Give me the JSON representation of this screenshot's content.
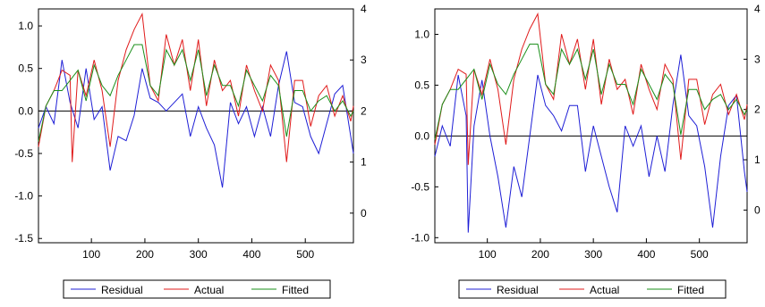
{
  "chart_data": [
    {
      "type": "line",
      "title": "",
      "xlabel": "",
      "ylabel": "",
      "x_range": [
        1,
        590
      ],
      "x_ticks": [
        "100",
        "200",
        "300",
        "400",
        "500"
      ],
      "y_left_range": [
        -1.55,
        1.2
      ],
      "y_left_ticks": [
        "1.0",
        "0.5",
        "0.0",
        "-0.5",
        "-1.0",
        "-1.5"
      ],
      "y_right_range": [
        -0.58,
        4.0
      ],
      "y_right_ticks": [
        "4",
        "3",
        "2",
        "1",
        "0"
      ],
      "grid": false,
      "legend_position": "bottom-center",
      "series": [
        {
          "name": "Residual",
          "axis": "left",
          "color": "#1f1fd6",
          "x": [
            1,
            15,
            30,
            45,
            60,
            75,
            90,
            105,
            120,
            135,
            150,
            165,
            180,
            195,
            210,
            225,
            240,
            255,
            270,
            285,
            300,
            315,
            330,
            345,
            360,
            375,
            390,
            405,
            420,
            435,
            450,
            465,
            480,
            495,
            510,
            525,
            540,
            555,
            570,
            585,
            590
          ],
          "values": [
            -0.2,
            0.05,
            -0.15,
            0.6,
            0.1,
            -0.2,
            0.5,
            -0.1,
            0.05,
            -0.7,
            -0.3,
            -0.35,
            -0.05,
            0.5,
            0.15,
            0.1,
            0.0,
            0.1,
            0.2,
            -0.3,
            0.05,
            -0.2,
            -0.4,
            -0.9,
            0.1,
            -0.15,
            0.05,
            -0.3,
            0.05,
            -0.3,
            0.3,
            0.7,
            0.1,
            0.05,
            -0.3,
            -0.5,
            -0.15,
            0.2,
            0.3,
            -0.3,
            -0.5
          ]
        },
        {
          "name": "Actual",
          "axis": "right",
          "color": "#e01b1b",
          "x": [
            1,
            15,
            30,
            45,
            60,
            64,
            75,
            90,
            105,
            120,
            135,
            150,
            165,
            180,
            195,
            210,
            225,
            240,
            255,
            270,
            285,
            300,
            315,
            330,
            345,
            360,
            375,
            390,
            405,
            420,
            435,
            450,
            465,
            480,
            495,
            510,
            525,
            540,
            555,
            570,
            585,
            590
          ],
          "values": [
            1.3,
            2.1,
            2.4,
            2.8,
            2.7,
            1.0,
            2.8,
            2.3,
            3.0,
            2.4,
            1.3,
            2.6,
            3.2,
            3.6,
            3.9,
            2.5,
            2.2,
            3.5,
            2.9,
            3.4,
            2.4,
            3.4,
            2.1,
            3.0,
            2.4,
            2.6,
            1.9,
            2.9,
            2.4,
            2.0,
            2.9,
            2.6,
            1.0,
            2.6,
            2.6,
            1.7,
            2.3,
            2.5,
            1.9,
            2.3,
            1.8,
            2.1
          ]
        },
        {
          "name": "Fitted",
          "axis": "right",
          "color": "#1a8f1a",
          "x": [
            1,
            15,
            30,
            45,
            60,
            75,
            90,
            105,
            120,
            135,
            150,
            165,
            180,
            195,
            210,
            225,
            240,
            255,
            270,
            285,
            300,
            315,
            330,
            345,
            360,
            375,
            390,
            405,
            420,
            435,
            450,
            465,
            480,
            495,
            510,
            525,
            540,
            555,
            570,
            585,
            590
          ],
          "values": [
            1.4,
            2.1,
            2.4,
            2.4,
            2.6,
            2.8,
            2.2,
            2.9,
            2.5,
            2.3,
            2.7,
            3.0,
            3.3,
            3.3,
            2.5,
            2.3,
            3.2,
            2.9,
            3.2,
            2.6,
            3.2,
            2.3,
            2.9,
            2.5,
            2.5,
            2.1,
            2.8,
            2.5,
            2.2,
            2.7,
            2.5,
            1.5,
            2.4,
            2.4,
            2.0,
            2.2,
            2.3,
            2.0,
            2.2,
            1.9,
            2.0
          ]
        }
      ]
    },
    {
      "type": "line",
      "title": "",
      "xlabel": "",
      "ylabel": "",
      "x_range": [
        1,
        590
      ],
      "x_ticks": [
        "100",
        "200",
        "300",
        "400",
        "500"
      ],
      "y_left_range": [
        -1.05,
        1.25
      ],
      "y_left_ticks": [
        "1.0",
        "0.5",
        "0.0",
        "-0.5",
        "-1.0"
      ],
      "y_right_range": [
        -0.65,
        4.0
      ],
      "y_right_ticks": [
        "4",
        "3",
        "2",
        "1",
        "0"
      ],
      "grid": false,
      "legend_position": "bottom-center",
      "series": [
        {
          "name": "Residual",
          "axis": "left",
          "color": "#1f1fd6",
          "x": [
            1,
            15,
            30,
            45,
            60,
            64,
            75,
            90,
            105,
            120,
            135,
            150,
            165,
            180,
            195,
            210,
            225,
            240,
            255,
            270,
            285,
            300,
            315,
            330,
            345,
            360,
            375,
            390,
            405,
            420,
            435,
            450,
            465,
            480,
            495,
            510,
            525,
            540,
            555,
            570,
            585,
            590
          ],
          "values": [
            -0.2,
            0.1,
            -0.1,
            0.6,
            0.2,
            -0.95,
            0.1,
            0.55,
            0.0,
            -0.4,
            -0.9,
            -0.3,
            -0.6,
            0.0,
            0.6,
            0.3,
            0.2,
            0.05,
            0.3,
            0.3,
            -0.35,
            0.1,
            -0.2,
            -0.5,
            -0.75,
            0.1,
            -0.1,
            0.1,
            -0.4,
            0.0,
            -0.35,
            0.3,
            0.8,
            0.2,
            0.1,
            -0.3,
            -0.9,
            -0.2,
            0.3,
            0.4,
            -0.35,
            -0.55
          ]
        },
        {
          "name": "Actual",
          "axis": "right",
          "color": "#e01b1b",
          "x": [
            1,
            15,
            30,
            45,
            60,
            64,
            75,
            90,
            105,
            120,
            135,
            150,
            165,
            180,
            195,
            210,
            225,
            240,
            255,
            270,
            285,
            300,
            315,
            330,
            345,
            360,
            375,
            390,
            405,
            420,
            435,
            450,
            465,
            480,
            495,
            510,
            525,
            540,
            555,
            570,
            585,
            590
          ],
          "values": [
            1.3,
            2.1,
            2.4,
            2.8,
            2.7,
            0.9,
            2.8,
            2.3,
            3.0,
            2.4,
            1.3,
            2.6,
            3.2,
            3.6,
            3.9,
            2.5,
            2.2,
            3.5,
            2.9,
            3.4,
            2.4,
            3.4,
            2.1,
            3.0,
            2.4,
            2.6,
            1.9,
            2.9,
            2.4,
            2.0,
            2.9,
            2.6,
            1.0,
            2.6,
            2.6,
            1.7,
            2.3,
            2.5,
            1.9,
            2.3,
            1.8,
            2.1
          ]
        },
        {
          "name": "Fitted",
          "axis": "right",
          "color": "#1a8f1a",
          "x": [
            1,
            15,
            30,
            45,
            60,
            75,
            90,
            105,
            120,
            135,
            150,
            165,
            180,
            195,
            210,
            225,
            240,
            255,
            270,
            285,
            300,
            315,
            330,
            345,
            360,
            375,
            390,
            405,
            420,
            435,
            450,
            465,
            480,
            495,
            510,
            525,
            540,
            555,
            570,
            585,
            590
          ],
          "values": [
            1.4,
            2.1,
            2.4,
            2.4,
            2.6,
            2.8,
            2.2,
            2.9,
            2.5,
            2.3,
            2.7,
            3.0,
            3.3,
            3.3,
            2.5,
            2.3,
            3.2,
            2.9,
            3.2,
            2.6,
            3.2,
            2.3,
            2.9,
            2.5,
            2.5,
            2.1,
            2.8,
            2.5,
            2.2,
            2.7,
            2.5,
            1.5,
            2.4,
            2.4,
            2.0,
            2.2,
            2.3,
            2.0,
            2.2,
            1.9,
            2.0
          ]
        }
      ]
    }
  ]
}
